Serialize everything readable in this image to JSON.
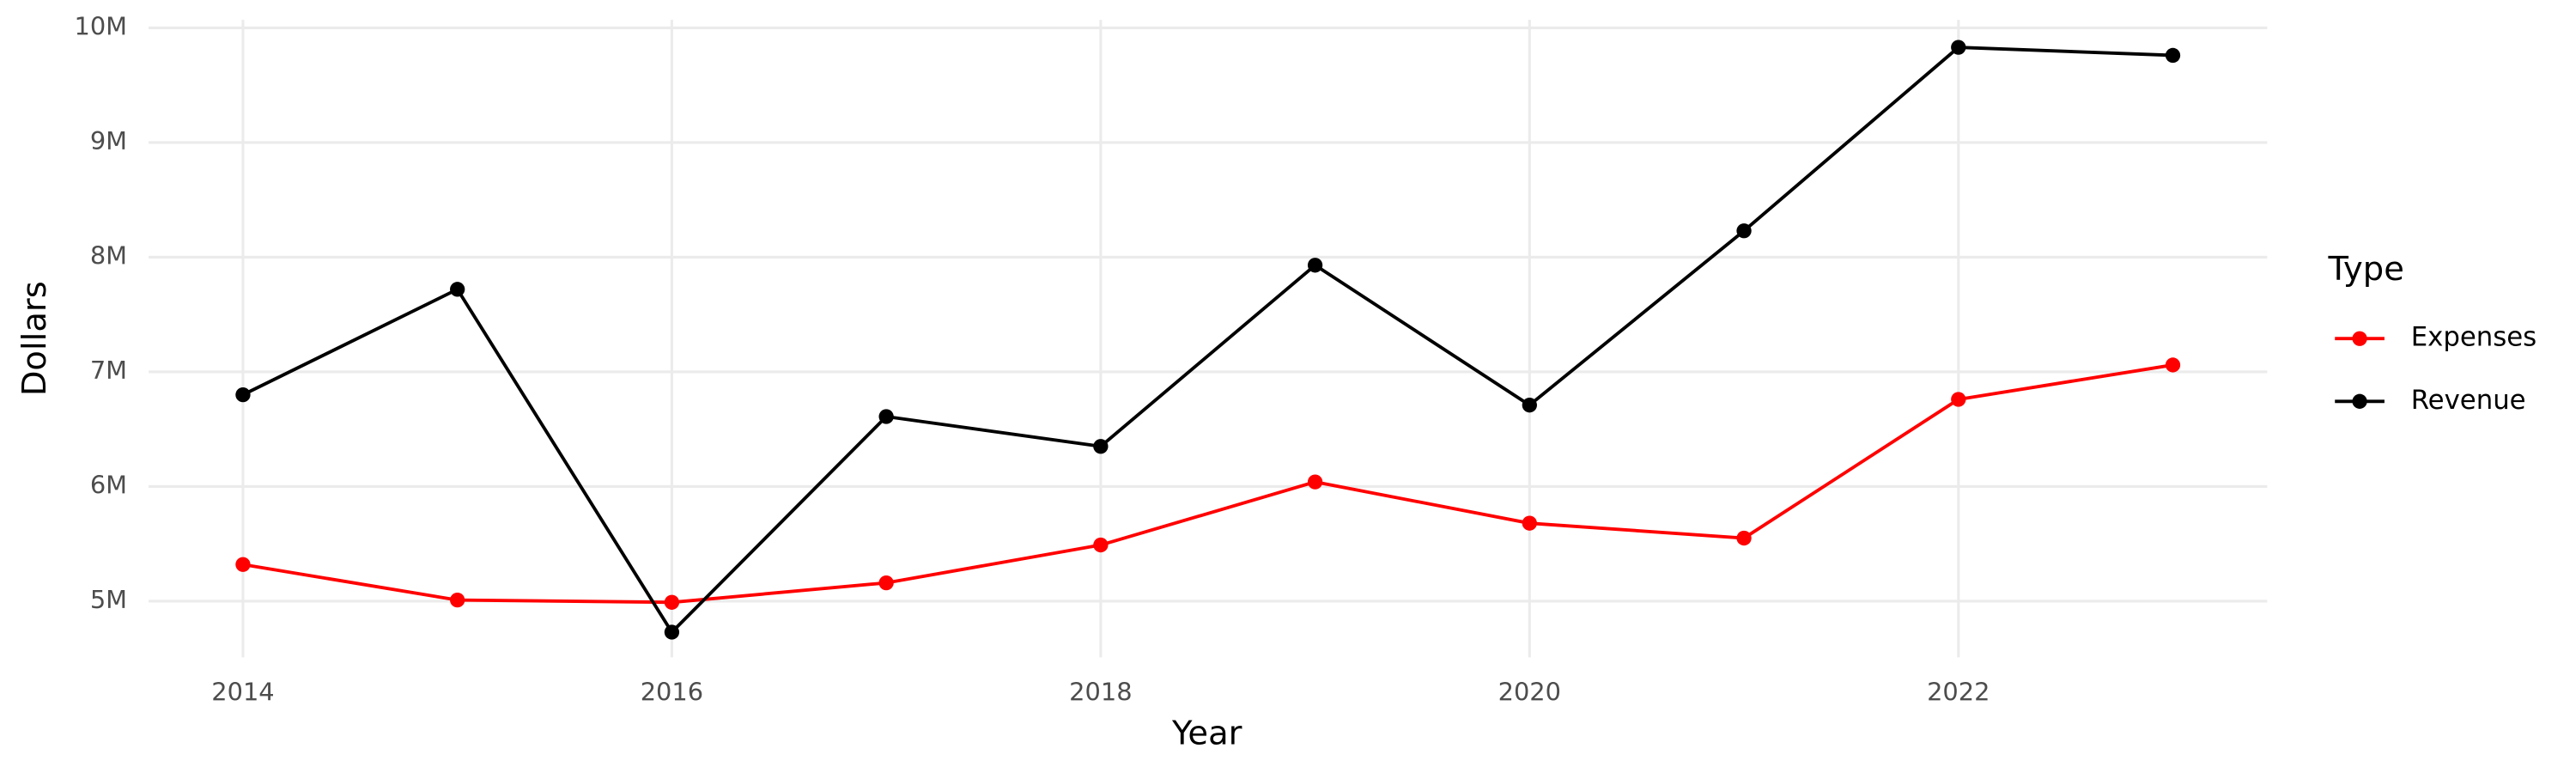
{
  "chart_data": {
    "type": "line",
    "x_label": "Year",
    "y_label": "Dollars",
    "legend_title": "Type",
    "legend_position": "right",
    "grid": true,
    "x": [
      2014,
      2015,
      2016,
      2017,
      2018,
      2019,
      2020,
      2021,
      2022,
      2023
    ],
    "xlim": [
      2013.56,
      2023.44
    ],
    "xticks": [
      2014,
      2016,
      2018,
      2020,
      2022
    ],
    "ylim": [
      4510000,
      10070000
    ],
    "yticks": [
      {
        "value": 5000000,
        "label": "5M"
      },
      {
        "value": 6000000,
        "label": "6M"
      },
      {
        "value": 7000000,
        "label": "7M"
      },
      {
        "value": 8000000,
        "label": "8M"
      },
      {
        "value": 9000000,
        "label": "9M"
      },
      {
        "value": 10000000,
        "label": "10M"
      }
    ],
    "series": [
      {
        "name": "Expenses",
        "color": "#ff0000",
        "values": [
          5320000,
          5010000,
          4990000,
          5160000,
          5490000,
          6040000,
          5680000,
          5550000,
          6760000,
          7060000
        ]
      },
      {
        "name": "Revenue",
        "color": "#000000",
        "values": [
          6800000,
          7720000,
          4730000,
          6610000,
          6350000,
          7930000,
          6710000,
          8230000,
          9830000,
          9760000
        ]
      }
    ]
  }
}
